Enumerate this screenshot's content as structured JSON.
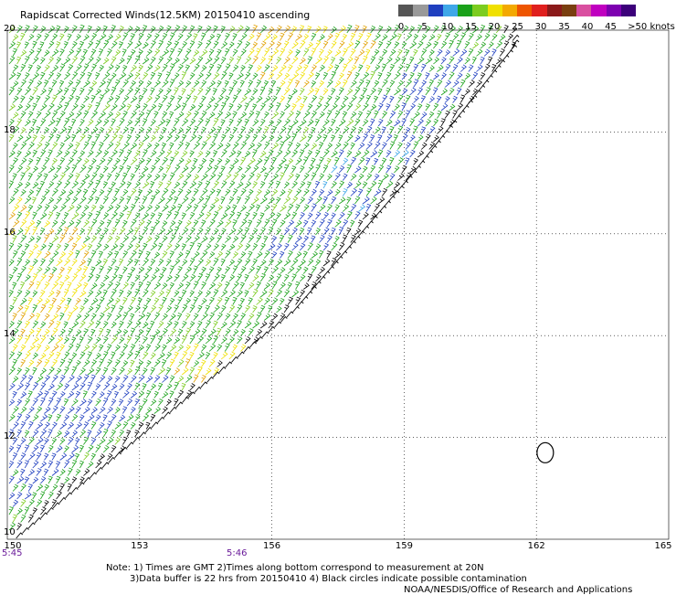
{
  "title": "Rapidscat Corrected Winds(12.5KM) 20150410 ascending",
  "legend": {
    "labels": [
      "0",
      "5",
      "10",
      "15",
      "20",
      "25",
      "30",
      "35",
      "40",
      "45",
      ">50 knots"
    ],
    "colors": [
      "#555555",
      "#999999",
      "#1f3fbf",
      "#3fa7e8",
      "#1aa11a",
      "#7ccc1f",
      "#f0e000",
      "#f3a900",
      "#ee5500",
      "#e0201e",
      "#8b1a1a",
      "#7a3f10",
      "#d94fa0",
      "#c000c0",
      "#7d00b0",
      "#3c007a"
    ]
  },
  "axes": {
    "x_ticks": [
      "150",
      "153",
      "156",
      "159",
      "162",
      "165"
    ],
    "y_ticks": [
      "20",
      "18",
      "16",
      "14",
      "12",
      "10"
    ]
  },
  "times": {
    "left": "5:45",
    "mid": "5:46"
  },
  "notes": {
    "line1": "Note: 1) Times are GMT 2)Times along bottom correspond to measurement at 20N",
    "line2": "3)Data buffer is 22 hrs from 20150410 4) Black circles indicate possible contamination",
    "line3": "NOAA/NESDIS/Office of Research and Applications"
  },
  "map": {
    "lon_range": [
      150,
      165
    ],
    "lat_range": [
      10,
      20
    ],
    "swath_edge_lonlat": [
      [
        150,
        9.9
      ],
      [
        156.5,
        14.5
      ],
      [
        159.2,
        17.2
      ],
      [
        161.5,
        19.7
      ]
    ],
    "wind_color_bands": [
      "green",
      "yellow",
      "blue",
      "light-blue",
      "black"
    ],
    "contamination_circle": {
      "lon": 162.2,
      "lat": 11.7
    }
  }
}
